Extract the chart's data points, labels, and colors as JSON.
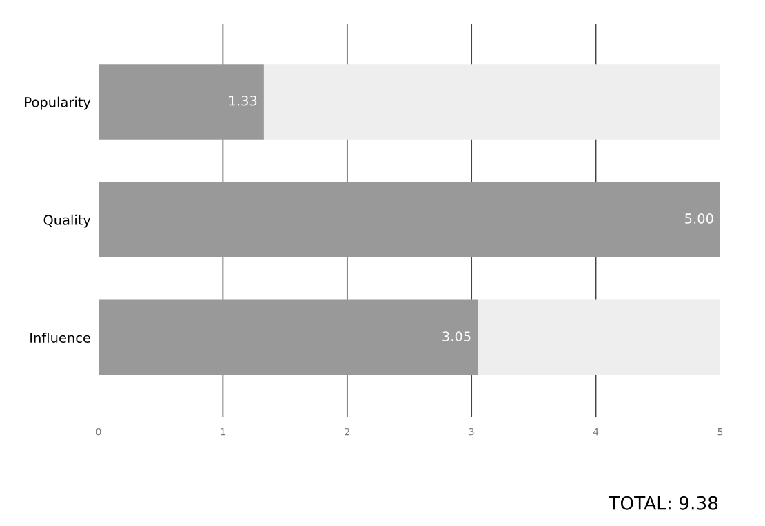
{
  "chart_data": {
    "type": "bar",
    "orientation": "horizontal",
    "stacked": true,
    "categories": [
      "Popularity",
      "Quality",
      "Influence"
    ],
    "series": [
      {
        "color": "#999999",
        "values": [
          1.33,
          5.0,
          3.05
        ],
        "value_labels": [
          "1.33",
          "5.00",
          "3.05"
        ]
      },
      {
        "color": "#eeeeee",
        "values": [
          3.67,
          0,
          1.95
        ]
      }
    ],
    "xlim": [
      0,
      5
    ],
    "xticks": [
      0,
      1,
      2,
      3,
      4,
      5
    ],
    "grid": "x",
    "annotations": [
      "TOTAL: 9.38"
    ]
  }
}
